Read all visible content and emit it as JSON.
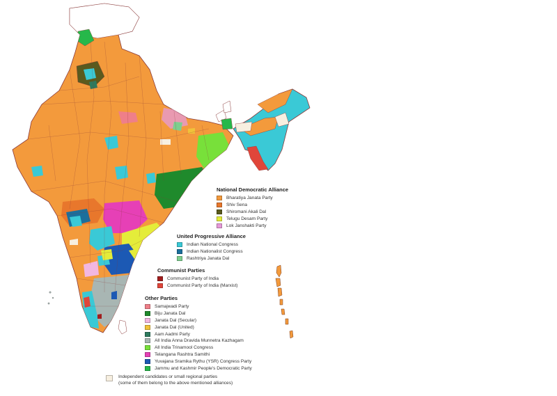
{
  "colors": {
    "background": "#ffffff",
    "border": "#8a3a3a",
    "bjp": "#f39a3c",
    "shiv_sena": "#e8772c",
    "akali": "#5a5a1e",
    "tdp": "#e4ec3a",
    "ljp": "#e69ad8",
    "inc": "#3ac9d6",
    "ncp": "#1b6f9c",
    "rjd": "#7ecf8f",
    "cpi": "#a11d1d",
    "cpim": "#e0463a",
    "sp": "#ef7f89",
    "bjd": "#1f8a2c",
    "jds": "#f2b7e1",
    "jdu": "#f1c23a",
    "aap": "#2d7a5e",
    "aiadmk": "#a8b6b3",
    "aitc": "#78e03a",
    "trs": "#e640b6",
    "ysrcp": "#1c59b4",
    "jkpdp": "#26b84a",
    "independent": "#f7efe0"
  },
  "legend": {
    "nda": {
      "title": "National Democratic Alliance",
      "items": [
        {
          "label": "Bharatiya Janata Party",
          "color": "#f39a3c"
        },
        {
          "label": "Shiv Sena",
          "color": "#e8772c"
        },
        {
          "label": "Shiromani Akali Dal",
          "color": "#5a5a1e"
        },
        {
          "label": "Telugu Desam Party",
          "color": "#e4ec3a"
        },
        {
          "label": "Lok Janshakti Party",
          "color": "#e69ad8"
        }
      ]
    },
    "upa": {
      "title": "United Progressive Alliance",
      "items": [
        {
          "label": "Indian National Congress",
          "color": "#3ac9d6"
        },
        {
          "label": "Indian Nationalist Congress",
          "color": "#1b6f9c"
        },
        {
          "label": "Rashtriya Janata Dal",
          "color": "#7ecf8f"
        }
      ]
    },
    "communist": {
      "title": "Communist Parties",
      "items": [
        {
          "label": "Communist Party of India",
          "color": "#a11d1d"
        },
        {
          "label": "Communist Party of India (Marxist)",
          "color": "#e0463a"
        }
      ]
    },
    "other": {
      "title": "Other Parties",
      "items": [
        {
          "label": "Samajwadi Party",
          "color": "#ef7f89"
        },
        {
          "label": "Biju Janata Dal",
          "color": "#1f8a2c"
        },
        {
          "label": "Janata Dal (Secular)",
          "color": "#f2b7e1"
        },
        {
          "label": "Janata Dal (United)",
          "color": "#f1c23a"
        },
        {
          "label": "Aam Aadmi Party",
          "color": "#2d7a5e"
        },
        {
          "label": "All India Anna Dravida Munnetra Kazhagam",
          "color": "#a8b6b3"
        },
        {
          "label": "All India Trinamool Congress",
          "color": "#78e03a"
        },
        {
          "label": "Telangana Rashtra Samithi",
          "color": "#e640b6"
        },
        {
          "label": "Yuvajana Sramika Rythu (YSR) Congress Party",
          "color": "#1c59b4"
        },
        {
          "label": "Jammu and Kashmir People's Democratic Party",
          "color": "#26b84a"
        }
      ]
    },
    "independent": {
      "color": "#f7efe0",
      "line1": "Independent candidates or small regional parties",
      "line2": "(some of them belong to the above mentioned alliances)"
    }
  }
}
